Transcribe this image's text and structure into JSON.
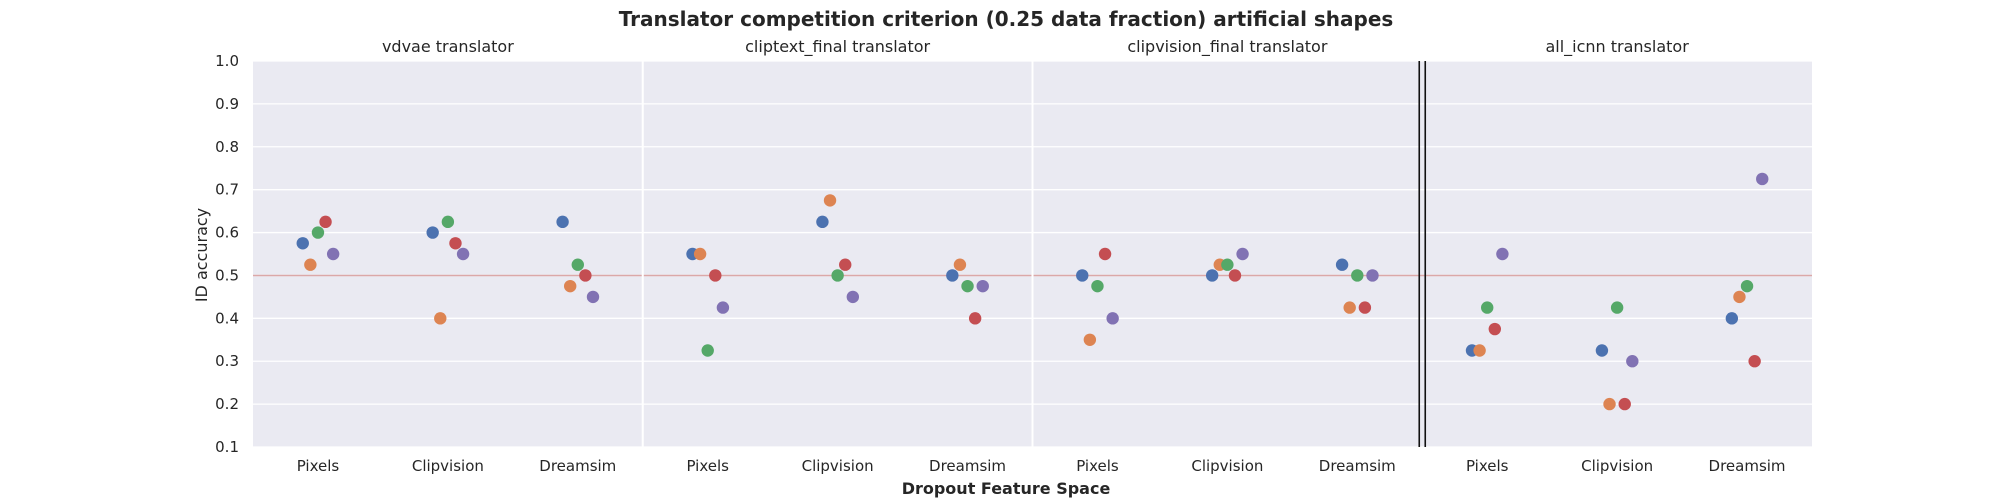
{
  "chart_data": {
    "type": "scatter",
    "title": "Translator competition criterion (0.25 data fraction) artificial shapes",
    "xlabel": "Dropout Feature Space",
    "ylabel": "ID accuracy",
    "ylim": [
      0.1,
      1.0
    ],
    "yticks": [
      "0.1",
      "0.2",
      "0.3",
      "0.4",
      "0.5",
      "0.6",
      "0.7",
      "0.8",
      "0.9",
      "1.0"
    ],
    "reference_line": 0.5,
    "grid": true,
    "legend": "none",
    "colors": [
      "#4c72b0",
      "#dd8452",
      "#55a868",
      "#c44e52",
      "#8172b3"
    ],
    "reference_color": "#dba8a8",
    "panels": [
      {
        "title": "vdvae translator",
        "categories": [
          "Pixels",
          "Clipvision",
          "Dreamsim"
        ],
        "points": [
          [
            0.575,
            0.525,
            0.6,
            0.625,
            0.55
          ],
          [
            0.6,
            0.4,
            0.625,
            0.575,
            0.55
          ],
          [
            0.625,
            0.475,
            0.525,
            0.5,
            0.45
          ]
        ]
      },
      {
        "title": "cliptext_final translator",
        "categories": [
          "Pixels",
          "Clipvision",
          "Dreamsim"
        ],
        "points": [
          [
            0.55,
            0.55,
            0.325,
            0.5,
            0.425
          ],
          [
            0.625,
            0.675,
            0.5,
            0.525,
            0.45
          ],
          [
            0.5,
            0.525,
            0.475,
            0.4,
            0.475
          ]
        ]
      },
      {
        "title": "clipvision_final translator",
        "categories": [
          "Pixels",
          "Clipvision",
          "Dreamsim"
        ],
        "points": [
          [
            0.5,
            0.35,
            0.475,
            0.55,
            0.4
          ],
          [
            0.5,
            0.525,
            0.525,
            0.5,
            0.55
          ],
          [
            0.525,
            0.425,
            0.5,
            0.425,
            0.5
          ]
        ]
      },
      {
        "title": "all_icnn translator",
        "categories": [
          "Pixels",
          "Clipvision",
          "Dreamsim"
        ],
        "points": [
          [
            0.325,
            0.325,
            0.425,
            0.375,
            0.55
          ],
          [
            0.325,
            0.2,
            0.425,
            0.2,
            0.3
          ],
          [
            0.4,
            0.45,
            0.475,
            0.3,
            0.725
          ]
        ]
      }
    ]
  }
}
